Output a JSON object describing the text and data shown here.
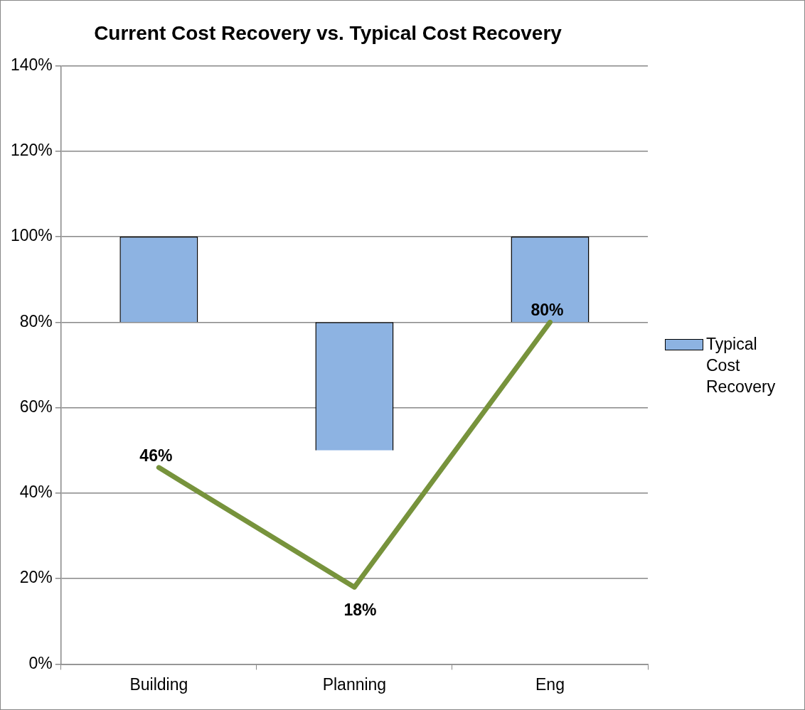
{
  "chart_data": {
    "type": "bar",
    "title": "Current Cost Recovery vs. Typical Cost Recovery",
    "categories": [
      "Building",
      "Planning",
      "Eng"
    ],
    "series": [
      {
        "name": "Typical Cost Recovery",
        "color": "#8db3e2",
        "base": [
          80,
          50,
          80
        ],
        "values": [
          20,
          30,
          20
        ]
      },
      {
        "type": "line",
        "color": "#77933c",
        "values": [
          46,
          18,
          80
        ],
        "value_labels": [
          "46%",
          "18%",
          "80%"
        ],
        "marker": "none"
      }
    ],
    "ylim": [
      0,
      140
    ],
    "yticks": [
      {
        "value": 0,
        "label": "0%"
      },
      {
        "value": 20,
        "label": "20%"
      },
      {
        "value": 40,
        "label": "40%"
      },
      {
        "value": 60,
        "label": "60%"
      },
      {
        "value": 80,
        "label": "80%"
      },
      {
        "value": 100,
        "label": "100%"
      },
      {
        "value": 120,
        "label": "120%"
      },
      {
        "value": 140,
        "label": "140%"
      }
    ],
    "grid": "y",
    "legend": "right"
  }
}
